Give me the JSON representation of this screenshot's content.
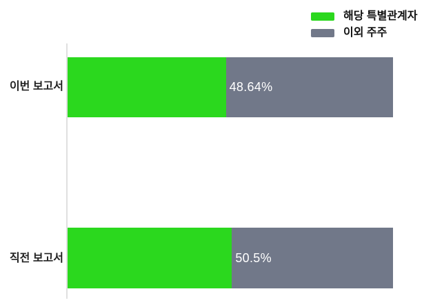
{
  "legend": {
    "items": [
      {
        "label": "해당 특별관계자",
        "color": "#2bd81e"
      },
      {
        "label": "이외 주주",
        "color": "#717889"
      }
    ]
  },
  "chart_data": {
    "type": "bar",
    "orientation": "horizontal",
    "stacked": true,
    "categories": [
      "이번 보고서",
      "직전 보고서"
    ],
    "series": [
      {
        "name": "해당 특별관계자",
        "color": "#2bd81e",
        "values": [
          48.64,
          50.5
        ]
      },
      {
        "name": "이외 주주",
        "color": "#717889",
        "values": [
          51.36,
          49.5
        ]
      }
    ],
    "value_labels": [
      "48.64%",
      "50.5%"
    ],
    "value_label_color": "#ffffff",
    "xlim": [
      0,
      100
    ],
    "axis_line_color": "#e0e0e0",
    "grid": false,
    "legend_position": "top-right",
    "background_color": "#ffffff"
  }
}
